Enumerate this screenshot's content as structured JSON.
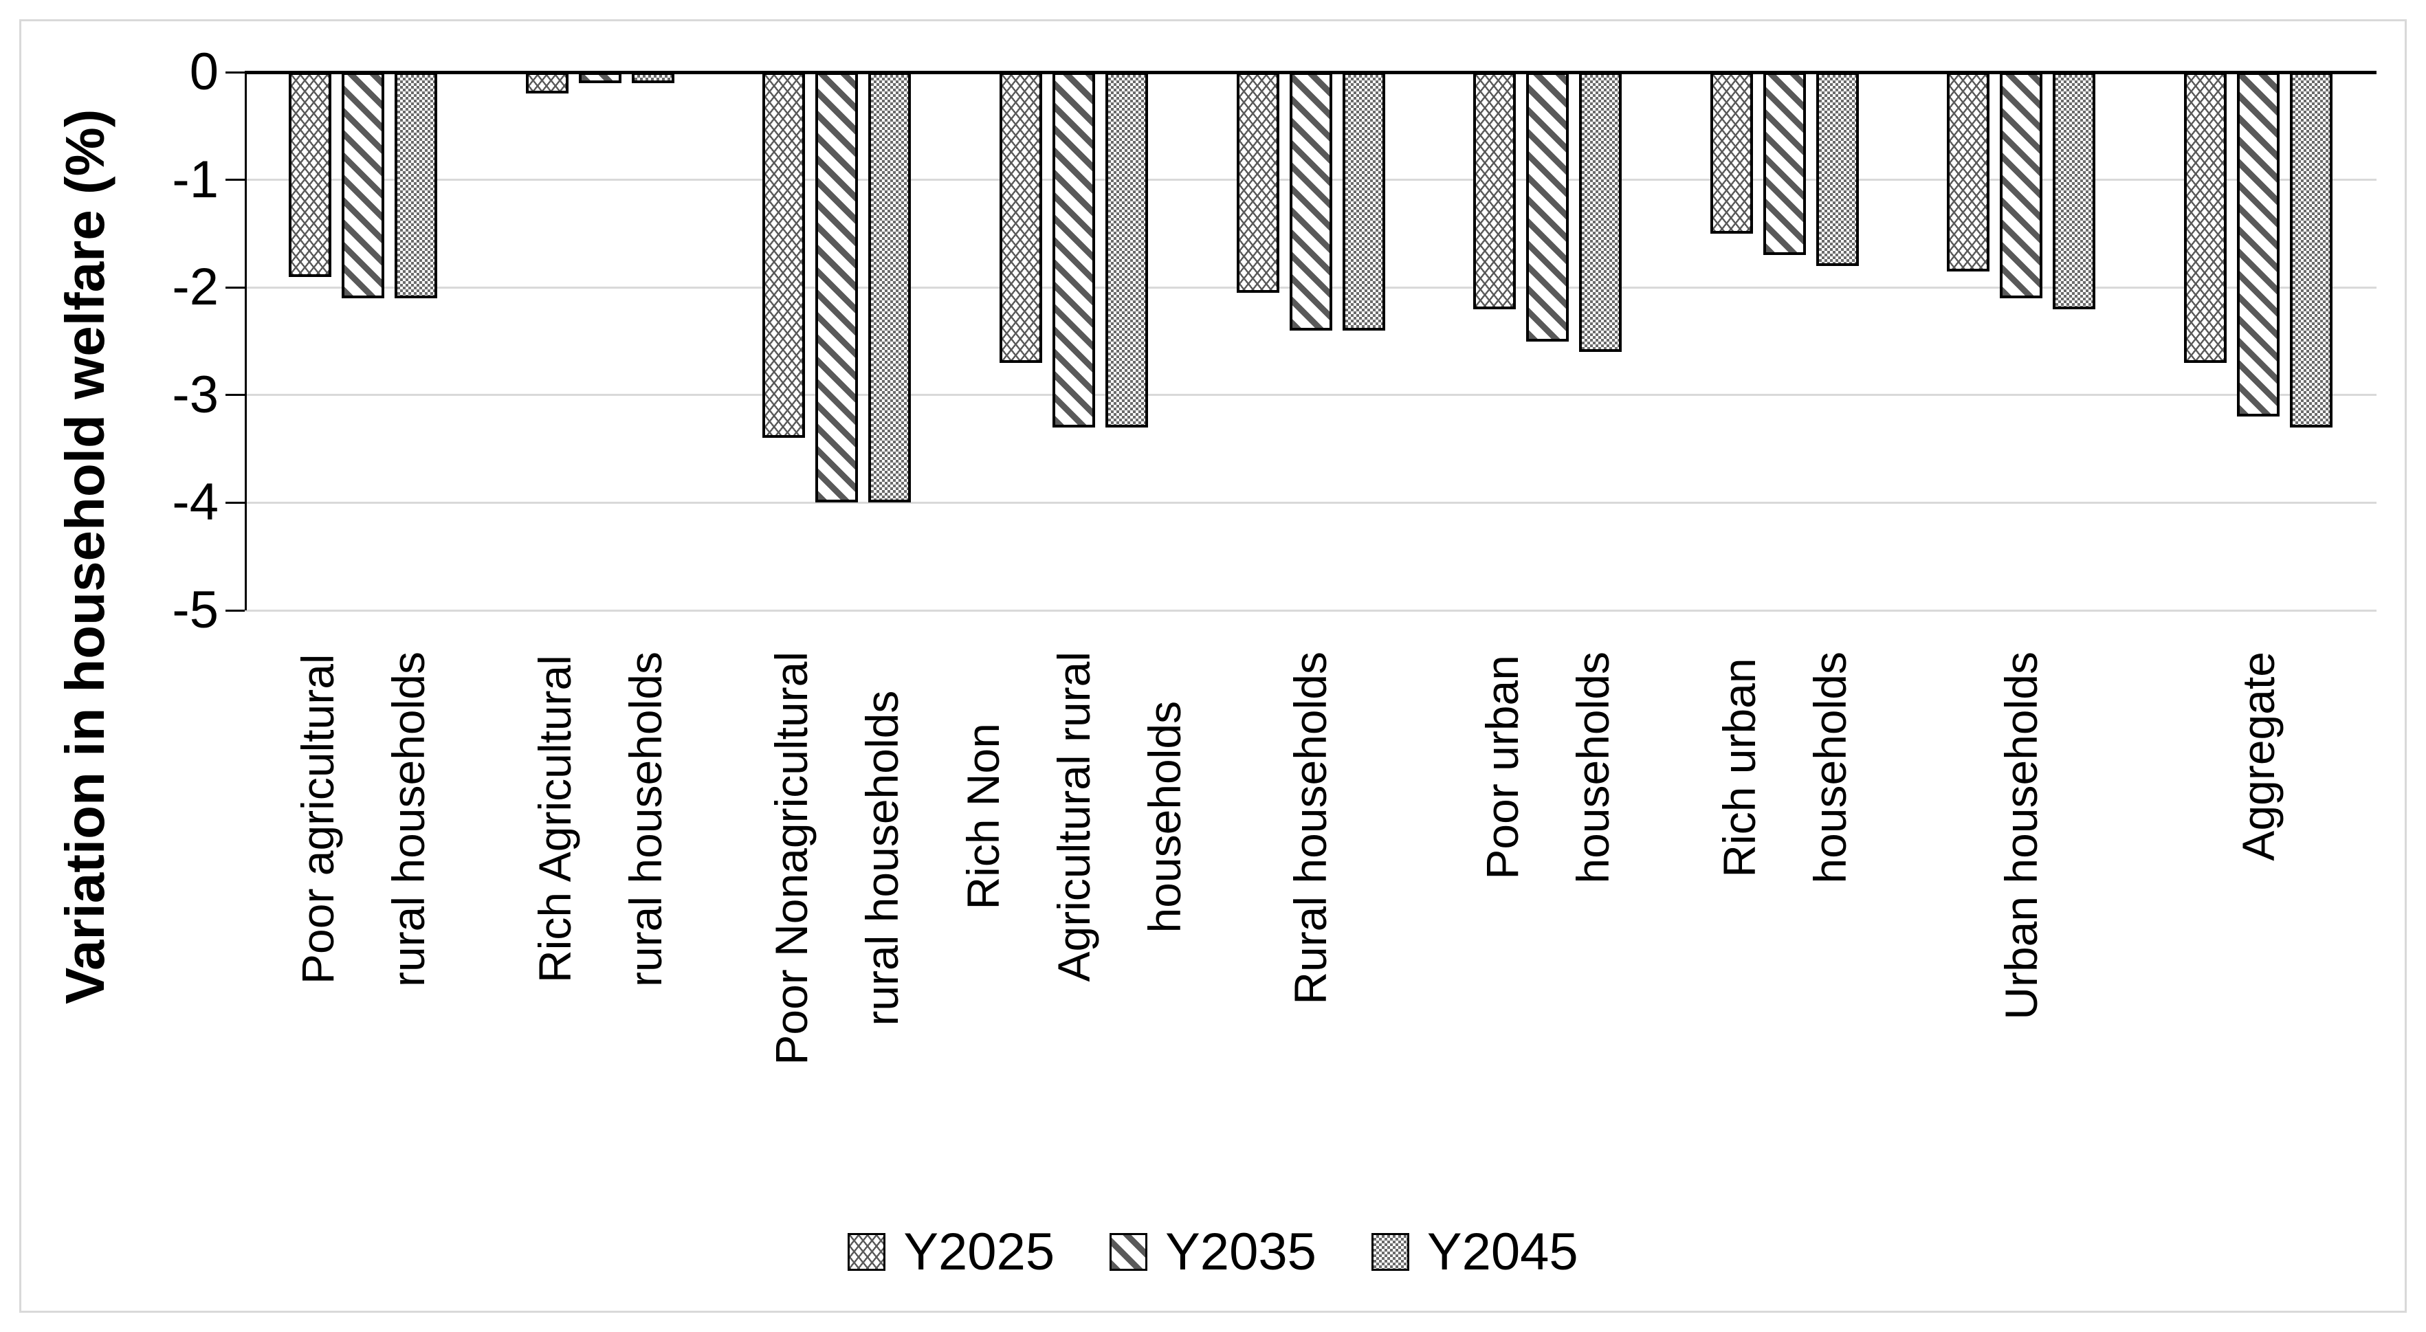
{
  "chart_data": {
    "type": "bar",
    "orientation": "vertical-grouped",
    "title": "",
    "xlabel": "",
    "ylabel": "Variation in household welfare (%)",
    "ylim": [
      -5,
      0
    ],
    "ytick_labels": [
      "0",
      "-1",
      "-2",
      "-3",
      "-4",
      "-5"
    ],
    "grid": "horizontal light-grey gridlines at each integer",
    "legend_position": "bottom-center",
    "categories": [
      "Poor agricultural rural households",
      "Rich Agricultural rural households",
      "Poor Nonagricultural rural households",
      "Rich Non Agricultural rural households",
      "Rural households",
      "Poor urban households",
      "Rich urban households",
      "Urban households",
      "Aggregate"
    ],
    "category_display_lines": [
      "Poor agricultural\nrural households",
      "Rich Agricultural\nrural households",
      "Poor Nonagricultural\nrural households",
      "Rich Non\nAgricultural rural\nhouseholds",
      "Rural households",
      "Poor urban\nhouseholds",
      "Rich urban\nhouseholds",
      "Urban households",
      "Aggregate"
    ],
    "series": [
      {
        "name": "Y2025",
        "pattern": "wave",
        "values": [
          -1.9,
          -0.2,
          -3.4,
          -2.7,
          -2.05,
          -2.2,
          -1.5,
          -1.85,
          -2.7
        ]
      },
      {
        "name": "Y2035",
        "pattern": "diagonal-stripe",
        "values": [
          -2.1,
          -0.1,
          -4.0,
          -3.3,
          -2.4,
          -2.5,
          -1.7,
          -2.1,
          -3.2
        ]
      },
      {
        "name": "Y2045",
        "pattern": "checker",
        "values": [
          -2.1,
          -0.1,
          -4.0,
          -3.3,
          -2.4,
          -2.6,
          -1.8,
          -2.2,
          -3.3
        ]
      }
    ],
    "colors": {
      "background": "#ffffff",
      "frame_border": "#d9d9d9",
      "gridline": "#d9d9d9",
      "axis": "#000000",
      "bar_border": "#000000",
      "pattern_ink": "#5a5a5a",
      "text": "#000000"
    }
  }
}
